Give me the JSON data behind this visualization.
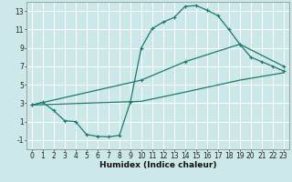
{
  "xlabel": "Humidex (Indice chaleur)",
  "bg_color": "#cce8e8",
  "grid_color": "#ffffff",
  "line_color": "#1a7a6e",
  "xlim": [
    -0.5,
    23.5
  ],
  "ylim": [
    -2.0,
    14.0
  ],
  "xticks": [
    0,
    1,
    2,
    3,
    4,
    5,
    6,
    7,
    8,
    9,
    10,
    11,
    12,
    13,
    14,
    15,
    16,
    17,
    18,
    19,
    20,
    21,
    22,
    23
  ],
  "yticks": [
    -1,
    1,
    3,
    5,
    7,
    9,
    11,
    13
  ],
  "line1_x": [
    0,
    1,
    2,
    3,
    4,
    5,
    6,
    7,
    8,
    9,
    10,
    11,
    12,
    13,
    14,
    15,
    16,
    17,
    18,
    19,
    20,
    21,
    22,
    23
  ],
  "line1_y": [
    2.8,
    3.1,
    2.2,
    1.1,
    1.0,
    -0.4,
    -0.6,
    -0.65,
    -0.5,
    3.1,
    9.0,
    11.1,
    11.8,
    12.3,
    13.5,
    13.6,
    13.1,
    12.5,
    11.0,
    9.4,
    8.0,
    7.5,
    7.0,
    6.5
  ],
  "line2_x": [
    0,
    10,
    14,
    19,
    23
  ],
  "line2_y": [
    2.8,
    5.5,
    7.5,
    9.4,
    7.0
  ],
  "line3_x": [
    0,
    10,
    14,
    19,
    23
  ],
  "line3_y": [
    2.8,
    3.2,
    4.2,
    5.5,
    6.3
  ],
  "tick_fontsize": 5.5,
  "xlabel_fontsize": 6.5
}
